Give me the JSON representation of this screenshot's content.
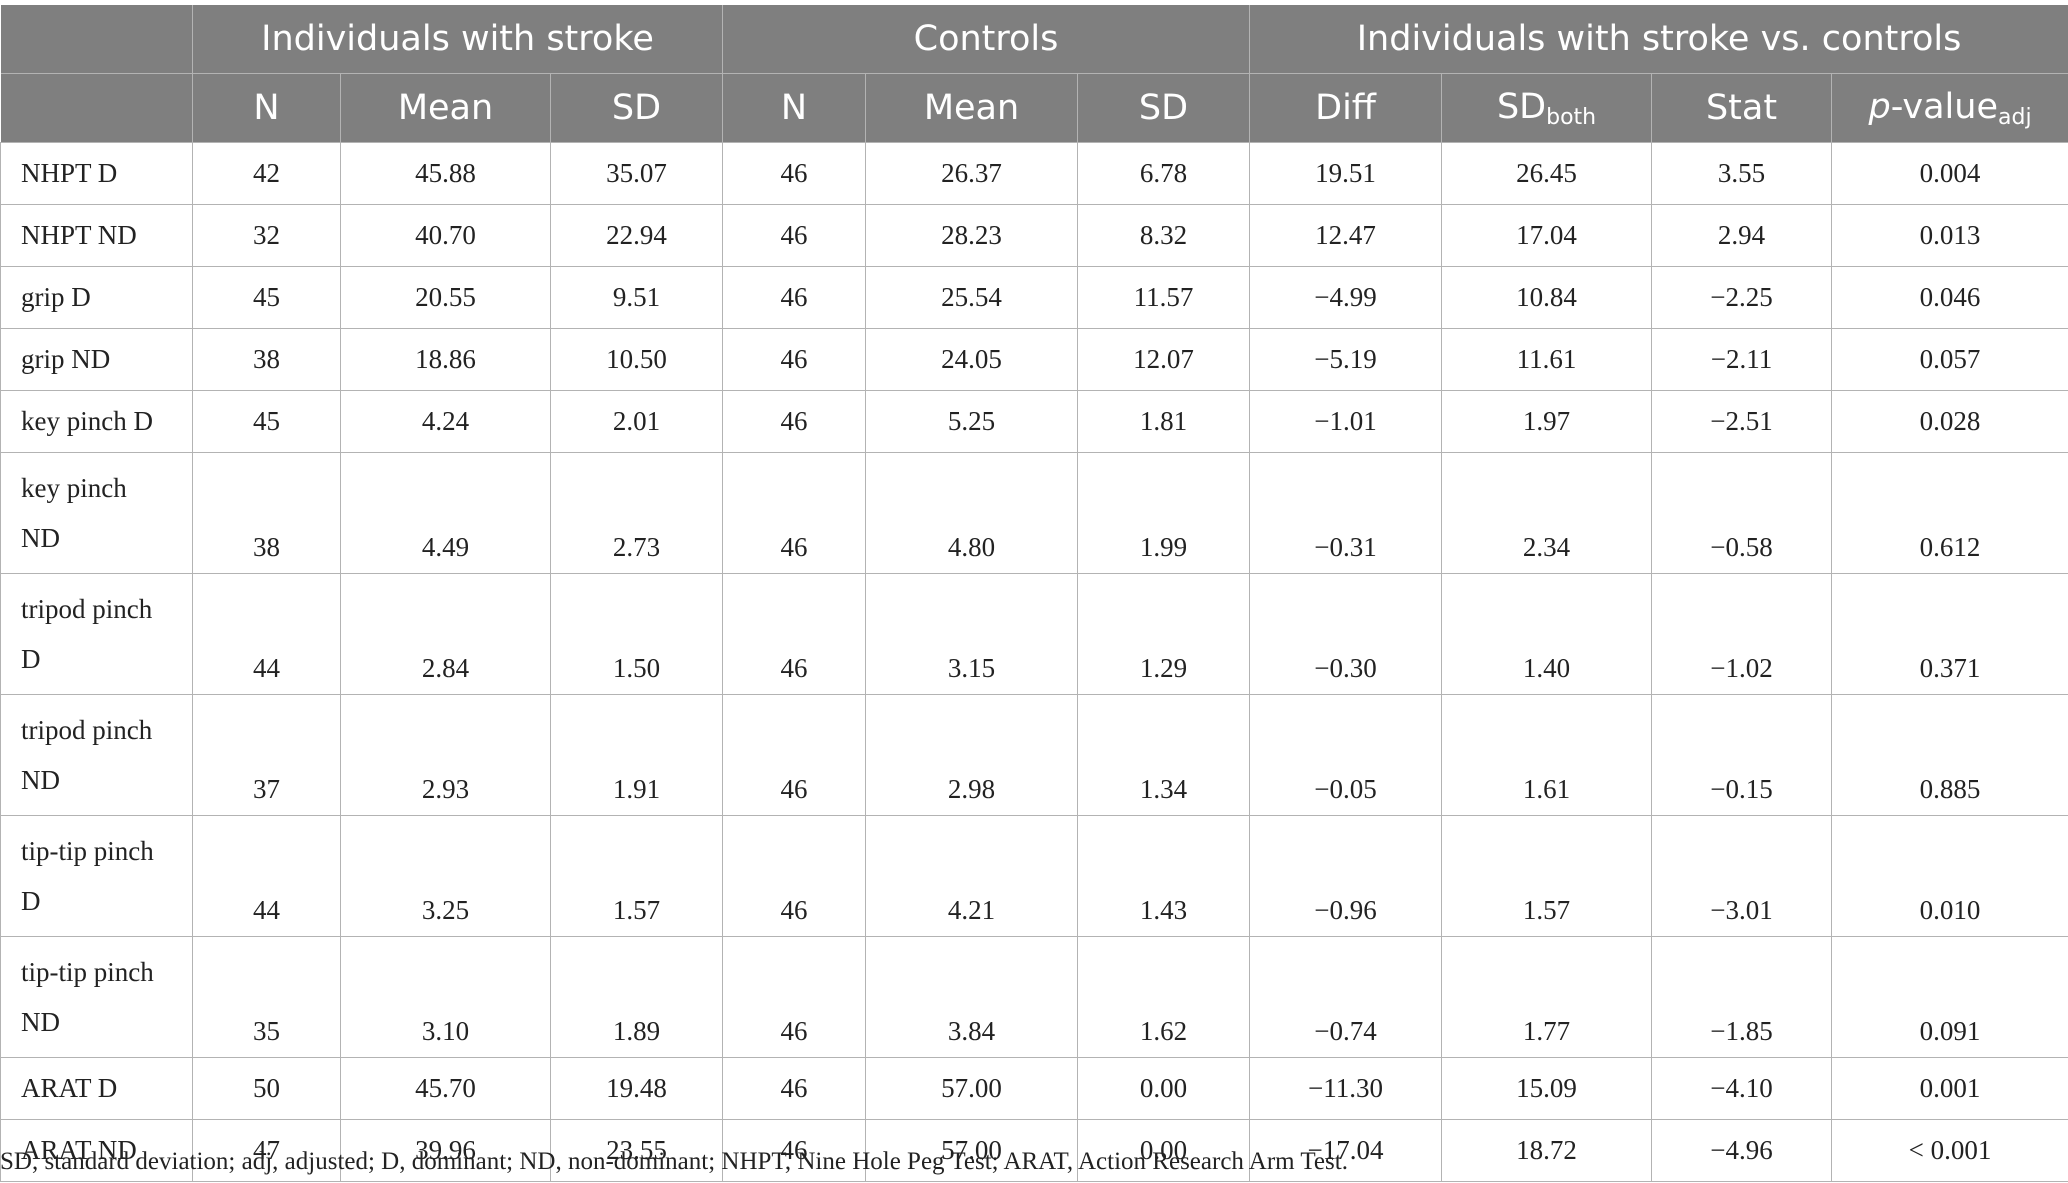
{
  "header": {
    "groups": [
      "",
      "Individuals with stroke",
      "Controls",
      "Individuals with stroke vs. controls"
    ],
    "columns": {
      "n1": "N",
      "mean1": "Mean",
      "sd1": "SD",
      "n2": "N",
      "mean2": "Mean",
      "sd2": "SD",
      "diff": "Diff",
      "sdboth_main": "SD",
      "sdboth_sub": "both",
      "stat": "Stat",
      "p_italic": "p",
      "p_main": "-value",
      "p_sub": "adj"
    }
  },
  "rows": [
    {
      "label": "NHPT D",
      "values": [
        "42",
        "45.88",
        "35.07",
        "46",
        "26.37",
        "6.78",
        "19.51",
        "26.45",
        "3.55",
        "0.004"
      ]
    },
    {
      "label": "NHPT ND",
      "values": [
        "32",
        "40.70",
        "22.94",
        "46",
        "28.23",
        "8.32",
        "12.47",
        "17.04",
        "2.94",
        "0.013"
      ]
    },
    {
      "label": "grip D",
      "values": [
        "45",
        "20.55",
        "9.51",
        "46",
        "25.54",
        "11.57",
        "−4.99",
        "10.84",
        "−2.25",
        "0.046"
      ]
    },
    {
      "label": "grip ND",
      "values": [
        "38",
        "18.86",
        "10.50",
        "46",
        "24.05",
        "12.07",
        "−5.19",
        "11.61",
        "−2.11",
        "0.057"
      ]
    },
    {
      "label": "key pinch D",
      "values": [
        "45",
        "4.24",
        "2.01",
        "46",
        "5.25",
        "1.81",
        "−1.01",
        "1.97",
        "−2.51",
        "0.028"
      ]
    },
    {
      "label_line1": "key pinch",
      "label_line2": "ND",
      "values": [
        "38",
        "4.49",
        "2.73",
        "46",
        "4.80",
        "1.99",
        "−0.31",
        "2.34",
        "−0.58",
        "0.612"
      ]
    },
    {
      "label_line1": "tripod pinch",
      "label_line2": "D",
      "values": [
        "44",
        "2.84",
        "1.50",
        "46",
        "3.15",
        "1.29",
        "−0.30",
        "1.40",
        "−1.02",
        "0.371"
      ]
    },
    {
      "label_line1": "tripod pinch",
      "label_line2": "ND",
      "values": [
        "37",
        "2.93",
        "1.91",
        "46",
        "2.98",
        "1.34",
        "−0.05",
        "1.61",
        "−0.15",
        "0.885"
      ]
    },
    {
      "label_line1": "tip-tip pinch",
      "label_line2": "D",
      "values": [
        "44",
        "3.25",
        "1.57",
        "46",
        "4.21",
        "1.43",
        "−0.96",
        "1.57",
        "−3.01",
        "0.010"
      ]
    },
    {
      "label_line1": "tip-tip pinch",
      "label_line2": "ND",
      "values": [
        "35",
        "3.10",
        "1.89",
        "46",
        "3.84",
        "1.62",
        "−0.74",
        "1.77",
        "−1.85",
        "0.091"
      ]
    },
    {
      "label": "ARAT D",
      "values": [
        "50",
        "45.70",
        "19.48",
        "46",
        "57.00",
        "0.00",
        "−11.30",
        "15.09",
        "−4.10",
        "0.001"
      ]
    },
    {
      "label": "ARAT ND",
      "values": [
        "47",
        "39.96",
        "23.55",
        "46",
        "57.00",
        "0.00",
        "−17.04",
        "18.72",
        "−4.96",
        "< 0.001"
      ]
    }
  ],
  "footnote": "SD, standard deviation; adj, adjusted; D, dominant; ND, non-dominant; NHPT, Nine Hole Peg Test; ARAT, Action Research Arm Test."
}
